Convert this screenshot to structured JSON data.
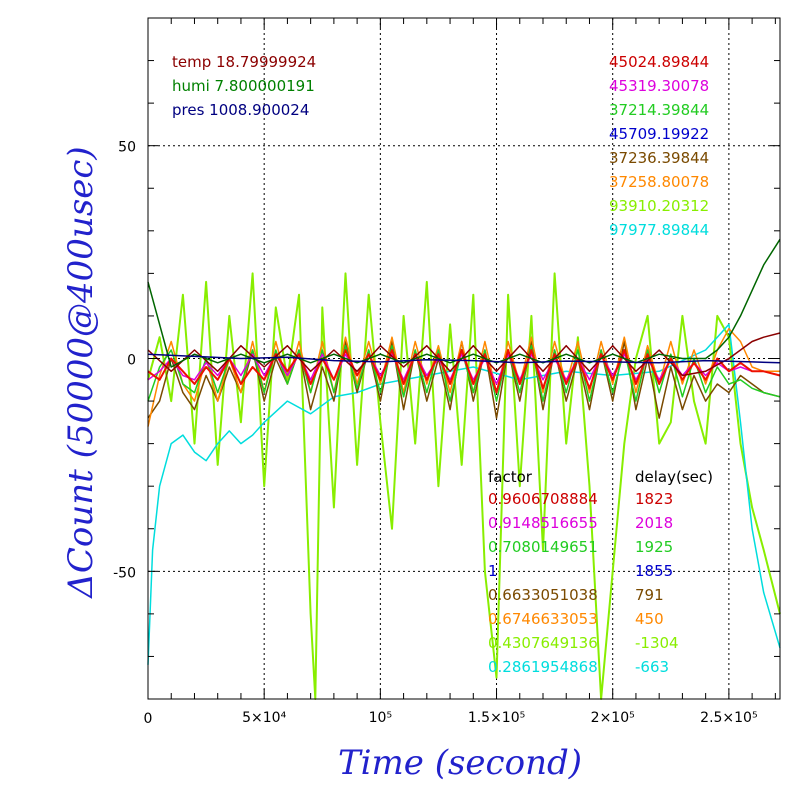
{
  "chart_data": {
    "type": "line",
    "xlabel": "Time (second)",
    "ylabel": "ΔCount (50000@400usec)",
    "xlim": [
      0,
      272000
    ],
    "ylim": [
      -80,
      80
    ],
    "grid": true,
    "x_ticks": [
      {
        "value": 0,
        "label": "0"
      },
      {
        "value": 50000,
        "label": "5×10⁴"
      },
      {
        "value": 100000,
        "label": "10⁵"
      },
      {
        "value": 150000,
        "label": "1.5×10⁵"
      },
      {
        "value": 200000,
        "label": "2×10⁵"
      },
      {
        "value": 250000,
        "label": "2.5×10⁵"
      }
    ],
    "y_ticks": [
      {
        "value": 50,
        "label": "50"
      },
      {
        "value": 0,
        "label": "0"
      },
      {
        "value": -50,
        "label": "-50"
      }
    ],
    "env_labels": [
      {
        "text": "temp 18.79999924",
        "color": "#8b0000"
      },
      {
        "text": "humi 7.800000191",
        "color": "#008000"
      },
      {
        "text": "pres 1008.900024",
        "color": "#000080"
      }
    ],
    "series_values": [
      {
        "text": "45024.89844",
        "color": "#cc0000"
      },
      {
        "text": "45319.30078",
        "color": "#dd00dd"
      },
      {
        "text": "37214.39844",
        "color": "#22cc22"
      },
      {
        "text": "45709.19922",
        "color": "#0000cc"
      },
      {
        "text": "37236.39844",
        "color": "#7a4a00"
      },
      {
        "text": "37258.80078",
        "color": "#ff8800"
      },
      {
        "text": "93910.20312",
        "color": "#88ee00"
      },
      {
        "text": "97977.89844",
        "color": "#00dddd"
      }
    ],
    "table_headers": {
      "factor": "factor",
      "delay": "delay(sec)"
    },
    "table_rows": [
      {
        "factor": "0.9606708884",
        "delay": "1823",
        "color": "#cc0000"
      },
      {
        "factor": "0.9148516655",
        "delay": "2018",
        "color": "#dd00dd"
      },
      {
        "factor": "0.7080149651",
        "delay": "1925",
        "color": "#22cc22"
      },
      {
        "factor": "1",
        "delay": "1855",
        "color": "#0000cc"
      },
      {
        "factor": "0.6633051038",
        "delay": "791",
        "color": "#7a4a00"
      },
      {
        "factor": "0.6746633053",
        "delay": "450",
        "color": "#ff8800"
      },
      {
        "factor": "0.4307649136",
        "delay": "-1304",
        "color": "#88ee00"
      },
      {
        "factor": "0.2861954868",
        "delay": "-663",
        "color": "#00dddd"
      }
    ],
    "series": [
      {
        "color": "#88ee00",
        "x": [
          0,
          5000,
          10000,
          15000,
          20000,
          25000,
          30000,
          35000,
          40000,
          45000,
          50000,
          55000,
          60000,
          65000,
          70000,
          72000,
          75000,
          80000,
          85000,
          90000,
          95000,
          100000,
          105000,
          110000,
          115000,
          120000,
          125000,
          130000,
          135000,
          140000,
          145000,
          150000,
          155000,
          160000,
          165000,
          170000,
          175000,
          180000,
          185000,
          190000,
          195000,
          200000,
          205000,
          210000,
          215000,
          220000,
          225000,
          230000,
          235000,
          240000,
          245000,
          250000,
          255000,
          260000,
          265000,
          272000
        ],
        "y": [
          -5,
          5,
          -10,
          15,
          -20,
          18,
          -25,
          10,
          -15,
          20,
          -30,
          12,
          -5,
          15,
          -60,
          -80,
          12,
          -35,
          20,
          -25,
          15,
          -15,
          -40,
          10,
          -20,
          18,
          -30,
          8,
          -25,
          15,
          -50,
          -75,
          15,
          -30,
          10,
          -45,
          20,
          -20,
          5,
          -30,
          -80,
          -50,
          -20,
          0,
          10,
          -20,
          -15,
          10,
          -10,
          -20,
          10,
          5,
          -20,
          -35,
          -45,
          -60
        ]
      },
      {
        "color": "#00dddd",
        "x": [
          0,
          2000,
          5000,
          10000,
          15000,
          20000,
          25000,
          30000,
          35000,
          40000,
          45000,
          50000,
          60000,
          70000,
          80000,
          90000,
          100000,
          120000,
          140000,
          160000,
          180000,
          200000,
          220000,
          240000,
          245000,
          250000,
          255000,
          260000,
          265000,
          272000
        ],
        "y": [
          -72,
          -45,
          -30,
          -20,
          -18,
          -22,
          -24,
          -20,
          -17,
          -20,
          -18,
          -15,
          -10,
          -13,
          -9,
          -8,
          -6,
          -4,
          -2,
          -5,
          -3,
          -4,
          -3,
          2,
          5,
          8,
          -15,
          -40,
          -55,
          -68
        ]
      },
      {
        "color": "#7a4a00",
        "x": [
          0,
          5000,
          10000,
          15000,
          20000,
          25000,
          30000,
          35000,
          40000,
          45000,
          50000,
          55000,
          60000,
          65000,
          70000,
          75000,
          80000,
          85000,
          90000,
          95000,
          100000,
          105000,
          110000,
          115000,
          120000,
          125000,
          130000,
          135000,
          140000,
          145000,
          150000,
          155000,
          160000,
          165000,
          170000,
          175000,
          180000,
          185000,
          190000,
          195000,
          200000,
          205000,
          210000,
          215000,
          220000,
          225000,
          230000,
          235000,
          240000,
          245000,
          250000,
          255000,
          260000,
          265000,
          272000
        ],
        "y": [
          -14,
          -10,
          0,
          -8,
          -12,
          -4,
          -10,
          -2,
          -8,
          2,
          -10,
          0,
          -6,
          2,
          -12,
          -2,
          -10,
          4,
          -8,
          2,
          -10,
          4,
          -12,
          2,
          -10,
          0,
          -12,
          4,
          -10,
          2,
          -14,
          2,
          -10,
          4,
          -12,
          2,
          -10,
          0,
          -12,
          2,
          -10,
          4,
          -12,
          0,
          -14,
          -2,
          -12,
          -4,
          -10,
          -6,
          -8,
          -4,
          -6,
          -8,
          -9
        ]
      },
      {
        "color": "#ff8800",
        "x": [
          0,
          5000,
          10000,
          15000,
          20000,
          25000,
          30000,
          35000,
          40000,
          45000,
          50000,
          55000,
          60000,
          65000,
          70000,
          75000,
          80000,
          85000,
          90000,
          95000,
          100000,
          105000,
          110000,
          115000,
          120000,
          125000,
          130000,
          135000,
          140000,
          145000,
          150000,
          155000,
          160000,
          165000,
          170000,
          175000,
          180000,
          185000,
          190000,
          195000,
          200000,
          205000,
          210000,
          215000,
          220000,
          225000,
          230000,
          235000,
          240000,
          245000,
          250000,
          255000,
          260000,
          265000,
          272000
        ],
        "y": [
          -16,
          -4,
          4,
          -6,
          -10,
          0,
          -10,
          0,
          -8,
          4,
          -8,
          4,
          -6,
          4,
          -8,
          4,
          -8,
          5,
          -6,
          4,
          -6,
          5,
          -8,
          4,
          -6,
          3,
          -8,
          4,
          -8,
          4,
          -8,
          4,
          -6,
          5,
          -8,
          4,
          -6,
          4,
          -8,
          4,
          -6,
          5,
          -8,
          3,
          -6,
          4,
          -6,
          2,
          -6,
          2,
          7,
          4,
          -2,
          -3,
          -3
        ]
      },
      {
        "color": "#22cc22",
        "x": [
          0,
          5000,
          10000,
          15000,
          20000,
          25000,
          30000,
          35000,
          40000,
          45000,
          50000,
          55000,
          60000,
          65000,
          70000,
          75000,
          80000,
          85000,
          90000,
          95000,
          100000,
          105000,
          110000,
          115000,
          120000,
          125000,
          130000,
          135000,
          140000,
          145000,
          150000,
          155000,
          160000,
          165000,
          170000,
          175000,
          180000,
          185000,
          190000,
          195000,
          200000,
          205000,
          210000,
          215000,
          220000,
          225000,
          230000,
          235000,
          240000,
          245000,
          250000,
          255000,
          260000,
          265000,
          272000
        ],
        "y": [
          -10,
          -2,
          2,
          -6,
          -8,
          0,
          -8,
          0,
          -6,
          2,
          -8,
          2,
          -6,
          2,
          -8,
          2,
          -8,
          3,
          -7,
          2,
          -8,
          3,
          -9,
          2,
          -8,
          2,
          -10,
          2,
          -8,
          2,
          -10,
          2,
          -8,
          3,
          -10,
          2,
          -8,
          2,
          -10,
          2,
          -8,
          2,
          -10,
          2,
          -8,
          1,
          -9,
          0,
          -8,
          -2,
          -6,
          -5,
          -7,
          -8,
          -9
        ]
      },
      {
        "color": "#dd00dd",
        "x": [
          0,
          5000,
          10000,
          15000,
          20000,
          25000,
          30000,
          35000,
          40000,
          45000,
          50000,
          55000,
          60000,
          65000,
          70000,
          75000,
          80000,
          85000,
          90000,
          95000,
          100000,
          105000,
          110000,
          115000,
          120000,
          125000,
          130000,
          135000,
          140000,
          145000,
          150000,
          155000,
          160000,
          165000,
          170000,
          175000,
          180000,
          185000,
          190000,
          195000,
          200000,
          205000,
          210000,
          215000,
          220000,
          225000,
          230000,
          235000,
          240000,
          245000,
          250000,
          255000,
          260000,
          265000,
          272000
        ],
        "y": [
          -5,
          -3,
          0,
          -4,
          -5,
          -1,
          -4,
          0,
          -4,
          1,
          -4,
          1,
          -4,
          1,
          -5,
          1,
          -5,
          1,
          -4,
          1,
          -4,
          1,
          -5,
          1,
          -4,
          0,
          -5,
          1,
          -5,
          0,
          -6,
          1,
          -5,
          1,
          -5,
          0,
          -5,
          0,
          -5,
          1,
          -4,
          1,
          -5,
          0,
          -5,
          0,
          -4,
          -1,
          -4,
          -1,
          -3,
          -2,
          -3,
          -3,
          -4
        ]
      },
      {
        "color": "#ee1100",
        "x": [
          0,
          5000,
          10000,
          15000,
          20000,
          25000,
          30000,
          35000,
          40000,
          45000,
          50000,
          55000,
          60000,
          65000,
          70000,
          75000,
          80000,
          85000,
          90000,
          95000,
          100000,
          105000,
          110000,
          115000,
          120000,
          125000,
          130000,
          135000,
          140000,
          145000,
          150000,
          155000,
          160000,
          165000,
          170000,
          175000,
          180000,
          185000,
          190000,
          195000,
          200000,
          205000,
          210000,
          215000,
          220000,
          225000,
          230000,
          235000,
          240000,
          245000,
          250000,
          255000,
          260000,
          265000,
          272000
        ],
        "y": [
          -3,
          -5,
          0,
          -3,
          -6,
          -2,
          -5,
          0,
          -6,
          -2,
          -5,
          1,
          -3,
          1,
          -6,
          0,
          -5,
          2,
          -4,
          1,
          -5,
          2,
          -6,
          1,
          -5,
          1,
          -6,
          2,
          -6,
          1,
          -8,
          2,
          -6,
          2,
          -7,
          1,
          -6,
          0,
          -7,
          1,
          -5,
          2,
          -6,
          1,
          -6,
          0,
          -5,
          -1,
          -5,
          0,
          -3,
          -1,
          -3,
          -3,
          -4
        ]
      },
      {
        "color": "#8b0000",
        "x": [
          0,
          10000,
          20000,
          30000,
          40000,
          50000,
          60000,
          70000,
          80000,
          90000,
          100000,
          110000,
          120000,
          130000,
          140000,
          150000,
          160000,
          170000,
          180000,
          190000,
          200000,
          210000,
          220000,
          230000,
          240000,
          250000,
          255000,
          260000,
          265000,
          272000
        ],
        "y": [
          2,
          -3,
          2,
          -3,
          3,
          -2,
          3,
          -3,
          2,
          -3,
          3,
          -2,
          3,
          -3,
          3,
          -3,
          3,
          -3,
          3,
          -3,
          3,
          -3,
          2,
          -4,
          -3,
          0,
          2,
          4,
          5,
          6
        ]
      },
      {
        "color": "#006600",
        "x": [
          0,
          10000,
          20000,
          30000,
          40000,
          50000,
          60000,
          70000,
          80000,
          90000,
          100000,
          110000,
          120000,
          130000,
          140000,
          150000,
          160000,
          170000,
          180000,
          190000,
          200000,
          210000,
          220000,
          230000,
          240000,
          245000,
          250000,
          255000,
          260000,
          265000,
          272000
        ],
        "y": [
          18,
          -2,
          1,
          -1,
          1,
          -1,
          1,
          -1,
          1,
          -1,
          1,
          -1,
          1,
          -1,
          1,
          -1,
          1,
          -1,
          1,
          -1,
          1,
          -1,
          1,
          0,
          0,
          2,
          5,
          10,
          16,
          22,
          28
        ]
      },
      {
        "color": "#000080",
        "x": [
          0,
          20000,
          40000,
          60000,
          80000,
          100000,
          120000,
          140000,
          160000,
          180000,
          200000,
          220000,
          240000,
          260000,
          272000
        ],
        "y": [
          1,
          0.5,
          0,
          0.3,
          -0.5,
          -0.8,
          -0.3,
          -0.5,
          -1,
          -0.6,
          -0.8,
          -1,
          -0.5,
          -0.8,
          -1
        ]
      }
    ]
  }
}
